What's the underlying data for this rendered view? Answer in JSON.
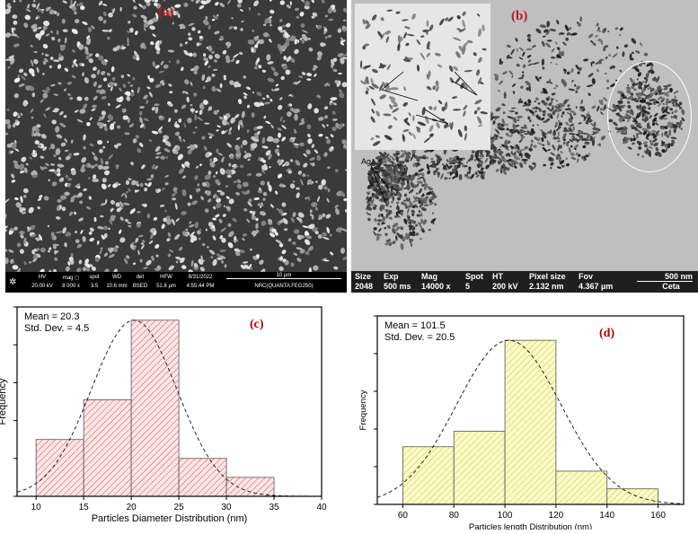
{
  "panel_a": {
    "label": "(a)",
    "footer": {
      "hv_label": "HV",
      "hv_value": "20.00 kV",
      "mag_label": "mag ◻",
      "mag_value": "8 000 x",
      "spot_label": "spot",
      "spot_value": "3.5",
      "wd_label": "WD",
      "wd_value": "10.6 mm",
      "det_label": "det",
      "det_value": "BSED",
      "hfw_label": "HFW",
      "hfw_value": "51.8 µm",
      "date": "8/31/2022",
      "time": "4:55:44 PM",
      "scale": "10 µm",
      "instrument": "NRC(QUANTA FEG250)"
    }
  },
  "panel_b": {
    "label": "(b)",
    "annotations": {
      "ag1": "Ag",
      "ag2": "Ag",
      "zno": "ZnO",
      "ag3": "Ag"
    },
    "footer": {
      "size_label": "Size",
      "size_value": "2048",
      "exp_label": "Exp",
      "exp_value": "500 ms",
      "mag_label": "Mag",
      "mag_value": "14000 x",
      "spot_label": "Spot",
      "spot_value": "5",
      "ht_label": "HT",
      "ht_value": "200 kV",
      "pixel_label": "Pixel size",
      "pixel_value": "2.132 nm",
      "fov_label": "Fov",
      "fov_value": "4.367 µm",
      "scale": "500 nm",
      "brand": "Ceta"
    }
  },
  "chart_data": [
    {
      "type": "bar",
      "panel_label": "(c)",
      "stats": {
        "mean": "Mean   = 20.3",
        "std": "Std. Dev. = 4.5"
      },
      "xlabel": "Particles Diameter Distribution (nm)",
      "ylabel": "Frequency",
      "xlim": [
        8,
        40
      ],
      "xticks": [
        10,
        15,
        20,
        25,
        30,
        35,
        40
      ],
      "bins": [
        {
          "x0": 10,
          "x1": 15,
          "value": 3
        },
        {
          "x0": 15,
          "x1": 20,
          "value": 5.1
        },
        {
          "x0": 20,
          "x1": 25,
          "value": 9.3
        },
        {
          "x0": 25,
          "x1": 30,
          "value": 2
        },
        {
          "x0": 30,
          "x1": 35,
          "value": 1
        }
      ],
      "ylim": [
        0,
        10
      ],
      "normal_curve": {
        "mean": 20.3,
        "std": 4.5,
        "peak": 9.3
      },
      "bar_fill": "#fde6e6",
      "bar_hatch": "#c0202a",
      "label_color": "#b00000"
    },
    {
      "type": "bar",
      "panel_label": "(d)",
      "stats": {
        "mean": "Mean  = 101.5",
        "std": "Std. Dev. = 20.5"
      },
      "xlabel": "Particles length Distribution (nm)",
      "ylabel": "Frequency",
      "xlim": [
        50,
        170
      ],
      "xticks": [
        60,
        80,
        100,
        120,
        140,
        160
      ],
      "bins": [
        {
          "x0": 60,
          "x1": 80,
          "value": 2.6
        },
        {
          "x0": 80,
          "x1": 100,
          "value": 3.3
        },
        {
          "x0": 100,
          "x1": 120,
          "value": 7.4
        },
        {
          "x0": 120,
          "x1": 140,
          "value": 1.5
        },
        {
          "x0": 140,
          "x1": 160,
          "value": 0.7
        }
      ],
      "ylim": [
        0,
        8.5
      ],
      "normal_curve": {
        "mean": 101.5,
        "std": 20.5,
        "peak": 7.4
      },
      "bar_fill": "#fbfbc8",
      "bar_hatch": "#b5b520",
      "label_color": "#b00000"
    }
  ]
}
